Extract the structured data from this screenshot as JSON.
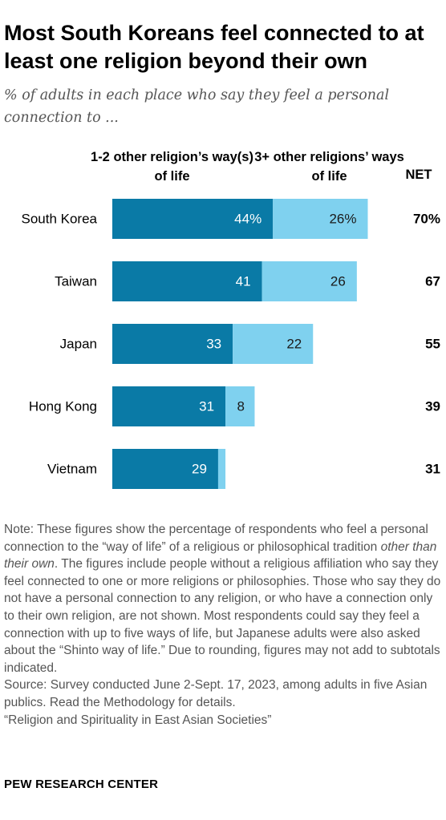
{
  "title": "Most South Koreans feel connected to at least one religion beyond their own",
  "subtitle": "% of adults in each place who say they feel a personal connection to ...",
  "headers": {
    "series1": "1-2 other religion’s way(s) of life",
    "series2": "3+ other religions’ ways of life",
    "net": "NET"
  },
  "colors": {
    "series1": "#0a7aa6",
    "series2": "#7fd1ef"
  },
  "chart_data": {
    "type": "bar",
    "orientation": "horizontal",
    "stacked": true,
    "categories": [
      "South Korea",
      "Taiwan",
      "Japan",
      "Hong Kong",
      "Vietnam"
    ],
    "series": [
      {
        "name": "1-2 other religion’s way(s) of life",
        "values": [
          44,
          41,
          33,
          31,
          29
        ],
        "labels": [
          "44%",
          "41",
          "33",
          "31",
          "29"
        ]
      },
      {
        "name": "3+ other religions’ ways of life",
        "values": [
          26,
          26,
          22,
          8,
          2
        ],
        "labels": [
          "26%",
          "26",
          "22",
          "8",
          ""
        ]
      }
    ],
    "net": [
      70,
      67,
      55,
      39,
      31
    ],
    "net_labels": [
      "70%",
      "67",
      "55",
      "39",
      "31"
    ]
  },
  "note": {
    "p1_before": "Note: These figures show the percentage of respondents who feel a personal connection to the “way of life” of a religious or philosophical tradition ",
    "p1_italic": "other than their own",
    "p1_after": ". The figures include people without a religious affiliation who say they feel connected to one or more religions or philosophies. Those who say they do not have a personal connection to any religion, or who have a connection only to their own religion, are not shown. Most respondents could say they feel a connection with up to five ways of life, but Japanese adults were also asked about the “Shinto way of life.” Due to rounding, figures may not add to subtotals indicated.",
    "source": "Source: Survey conducted June 2-Sept. 17, 2023, among adults in five Asian publics. Read the Methodology for details.",
    "report": "“Religion and Spirituality in East Asian Societies”"
  },
  "footer": "PEW RESEARCH CENTER"
}
